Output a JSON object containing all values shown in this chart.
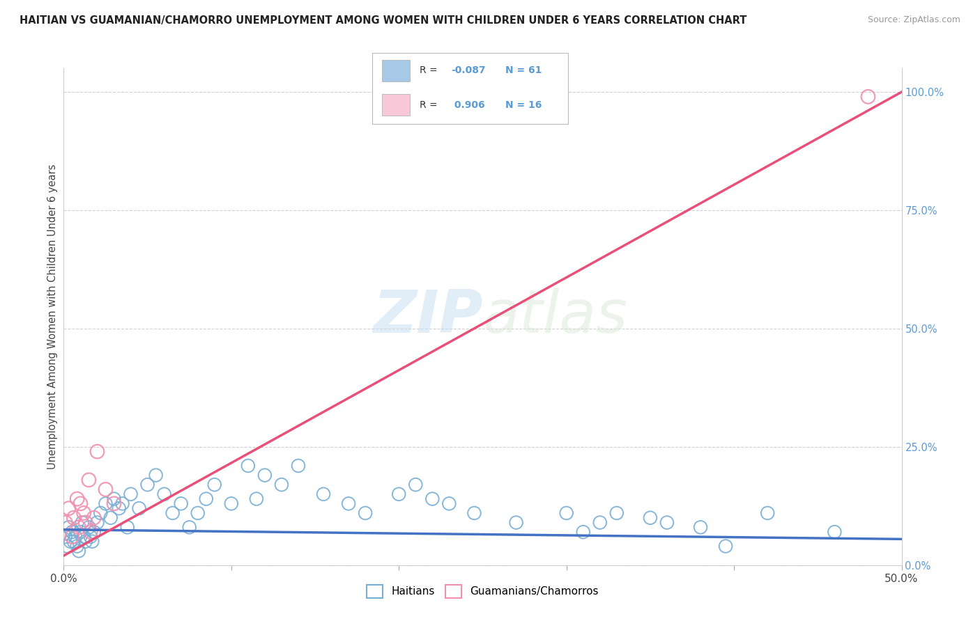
{
  "title": "HAITIAN VS GUAMANIAN/CHAMORRO UNEMPLOYMENT AMONG WOMEN WITH CHILDREN UNDER 6 YEARS CORRELATION CHART",
  "source": "Source: ZipAtlas.com",
  "ylabel": "Unemployment Among Women with Children Under 6 years",
  "watermark_zip": "ZIP",
  "watermark_atlas": "atlas",
  "right_ytick_labels": [
    "0.0%",
    "25.0%",
    "50.0%",
    "75.0%",
    "100.0%"
  ],
  "right_ytick_vals": [
    0.0,
    0.25,
    0.5,
    0.75,
    1.0
  ],
  "haitian_color": "#a8c8e8",
  "haitian_edge_color": "#7aafd4",
  "haitian_line_color": "#4472c4",
  "chamorro_color": "#f8c8d8",
  "chamorro_edge_color": "#f090b0",
  "chamorro_line_color": "#e8507a",
  "xlim": [
    0.0,
    0.5
  ],
  "ylim": [
    0.0,
    1.05
  ],
  "background": "#ffffff",
  "grid_color": "#d0d0d0",
  "haitian_R": -0.087,
  "haitian_N": 61,
  "chamorro_R": 0.906,
  "chamorro_N": 16,
  "chamorro_line_x0": 0.0,
  "chamorro_line_y0": 0.02,
  "chamorro_line_x1": 0.5,
  "chamorro_line_y1": 1.0,
  "haitian_line_x0": 0.0,
  "haitian_line_y0": 0.075,
  "haitian_line_x1": 0.5,
  "haitian_line_y1": 0.055,
  "haitian_x": [
    0.001,
    0.002,
    0.003,
    0.004,
    0.005,
    0.006,
    0.007,
    0.008,
    0.009,
    0.01,
    0.011,
    0.012,
    0.013,
    0.015,
    0.016,
    0.017,
    0.018,
    0.02,
    0.022,
    0.025,
    0.028,
    0.03,
    0.033,
    0.035,
    0.038,
    0.04,
    0.045,
    0.05,
    0.055,
    0.06,
    0.065,
    0.07,
    0.075,
    0.08,
    0.085,
    0.09,
    0.1,
    0.11,
    0.115,
    0.12,
    0.13,
    0.14,
    0.155,
    0.17,
    0.18,
    0.2,
    0.21,
    0.22,
    0.23,
    0.245,
    0.27,
    0.3,
    0.31,
    0.32,
    0.33,
    0.35,
    0.36,
    0.38,
    0.395,
    0.42,
    0.46
  ],
  "haitian_y": [
    0.06,
    0.04,
    0.08,
    0.05,
    0.07,
    0.05,
    0.06,
    0.04,
    0.03,
    0.07,
    0.09,
    0.06,
    0.05,
    0.08,
    0.06,
    0.05,
    0.07,
    0.09,
    0.11,
    0.13,
    0.1,
    0.14,
    0.12,
    0.13,
    0.08,
    0.15,
    0.12,
    0.17,
    0.19,
    0.15,
    0.11,
    0.13,
    0.08,
    0.11,
    0.14,
    0.17,
    0.13,
    0.21,
    0.14,
    0.19,
    0.17,
    0.21,
    0.15,
    0.13,
    0.11,
    0.15,
    0.17,
    0.14,
    0.13,
    0.11,
    0.09,
    0.11,
    0.07,
    0.09,
    0.11,
    0.1,
    0.09,
    0.08,
    0.04,
    0.11,
    0.07
  ],
  "chamorro_x": [
    0.001,
    0.003,
    0.005,
    0.006,
    0.008,
    0.009,
    0.01,
    0.012,
    0.013,
    0.015,
    0.016,
    0.018,
    0.02,
    0.025,
    0.03,
    0.48
  ],
  "chamorro_y": [
    0.09,
    0.12,
    0.06,
    0.1,
    0.14,
    0.08,
    0.13,
    0.11,
    0.09,
    0.18,
    0.07,
    0.1,
    0.24,
    0.16,
    0.13,
    0.99
  ]
}
